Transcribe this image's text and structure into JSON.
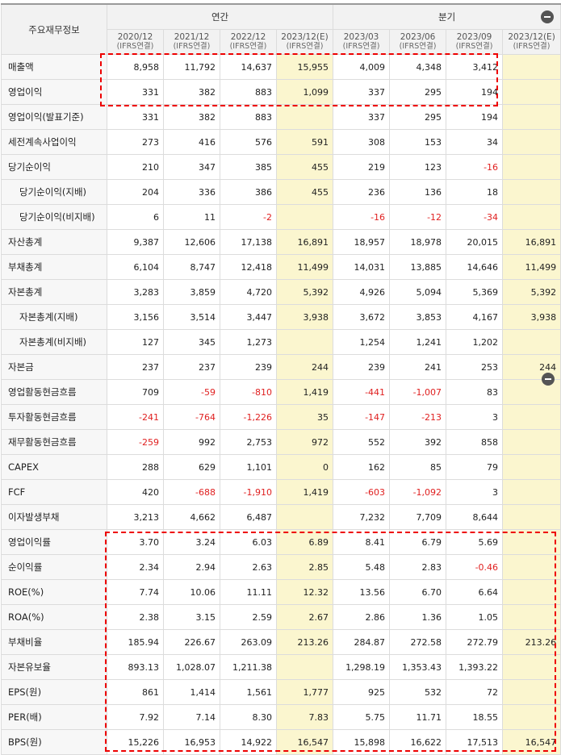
{
  "header": {
    "corner": "주요재무정보",
    "annual_label": "연간",
    "quarter_label": "분기",
    "columns": [
      {
        "period": "2020/12",
        "basis": "(IFRS연결)"
      },
      {
        "period": "2021/12",
        "basis": "(IFRS연결)"
      },
      {
        "period": "2022/12",
        "basis": "(IFRS연결)"
      },
      {
        "period": "2023/12(E)",
        "basis": "(IFRS연결)"
      },
      {
        "period": "2023/03",
        "basis": "(IFRS연결)"
      },
      {
        "period": "2023/06",
        "basis": "(IFRS연결)"
      },
      {
        "period": "2023/09",
        "basis": "(IFRS연결)"
      },
      {
        "period": "2023/12(E)",
        "basis": "(IFRS연결)"
      }
    ]
  },
  "rows": [
    {
      "label": "매출액",
      "values": [
        "8,958",
        "11,792",
        "14,637",
        "15,955",
        "4,009",
        "4,348",
        "3,412",
        ""
      ]
    },
    {
      "label": "영업이익",
      "values": [
        "331",
        "382",
        "883",
        "1,099",
        "337",
        "295",
        "194",
        ""
      ]
    },
    {
      "label": "영업이익(발표기준)",
      "values": [
        "331",
        "382",
        "883",
        "",
        "337",
        "295",
        "194",
        ""
      ]
    },
    {
      "label": "세전계속사업이익",
      "values": [
        "273",
        "416",
        "576",
        "591",
        "308",
        "153",
        "34",
        ""
      ]
    },
    {
      "label": "당기순이익",
      "values": [
        "210",
        "347",
        "385",
        "455",
        "219",
        "123",
        "-16",
        ""
      ]
    },
    {
      "label": "당기순이익(지배)",
      "values": [
        "204",
        "336",
        "386",
        "455",
        "236",
        "136",
        "18",
        ""
      ]
    },
    {
      "label": "당기순이익(비지배)",
      "values": [
        "6",
        "11",
        "-2",
        "",
        "-16",
        "-12",
        "-34",
        ""
      ]
    },
    {
      "label": "자산총계",
      "values": [
        "9,387",
        "12,606",
        "17,138",
        "16,891",
        "18,957",
        "18,978",
        "20,015",
        "16,891"
      ]
    },
    {
      "label": "부채총계",
      "values": [
        "6,104",
        "8,747",
        "12,418",
        "11,499",
        "14,031",
        "13,885",
        "14,646",
        "11,499"
      ]
    },
    {
      "label": "자본총계",
      "values": [
        "3,283",
        "3,859",
        "4,720",
        "5,392",
        "4,926",
        "5,094",
        "5,369",
        "5,392"
      ]
    },
    {
      "label": "자본총계(지배)",
      "values": [
        "3,156",
        "3,514",
        "3,447",
        "3,938",
        "3,672",
        "3,853",
        "4,167",
        "3,938"
      ]
    },
    {
      "label": "자본총계(비지배)",
      "values": [
        "127",
        "345",
        "1,273",
        "",
        "1,254",
        "1,241",
        "1,202",
        ""
      ]
    },
    {
      "label": "자본금",
      "values": [
        "237",
        "237",
        "239",
        "244",
        "239",
        "241",
        "253",
        "244"
      ]
    },
    {
      "label": "영업활동현금흐름",
      "values": [
        "709",
        "-59",
        "-810",
        "1,419",
        "-441",
        "-1,007",
        "83",
        ""
      ]
    },
    {
      "label": "투자활동현금흐름",
      "values": [
        "-241",
        "-764",
        "-1,226",
        "35",
        "-147",
        "-213",
        "3",
        ""
      ]
    },
    {
      "label": "재무활동현금흐름",
      "values": [
        "-259",
        "992",
        "2,753",
        "972",
        "552",
        "392",
        "858",
        ""
      ]
    },
    {
      "label": "CAPEX",
      "values": [
        "288",
        "629",
        "1,101",
        "0",
        "162",
        "85",
        "79",
        ""
      ]
    },
    {
      "label": "FCF",
      "values": [
        "420",
        "-688",
        "-1,910",
        "1,419",
        "-603",
        "-1,092",
        "3",
        ""
      ]
    },
    {
      "label": "이자발생부채",
      "values": [
        "3,213",
        "4,662",
        "6,487",
        "",
        "7,232",
        "7,709",
        "8,644",
        ""
      ]
    },
    {
      "label": "영업이익률",
      "values": [
        "3.70",
        "3.24",
        "6.03",
        "6.89",
        "8.41",
        "6.79",
        "5.69",
        ""
      ]
    },
    {
      "label": "순이익률",
      "values": [
        "2.34",
        "2.94",
        "2.63",
        "2.85",
        "5.48",
        "2.83",
        "-0.46",
        ""
      ]
    },
    {
      "label": "ROE(%)",
      "values": [
        "7.74",
        "10.06",
        "11.11",
        "12.32",
        "13.56",
        "6.70",
        "6.64",
        ""
      ]
    },
    {
      "label": "ROA(%)",
      "values": [
        "2.38",
        "3.15",
        "2.59",
        "2.67",
        "2.86",
        "1.36",
        "1.05",
        ""
      ]
    },
    {
      "label": "부채비율",
      "values": [
        "185.94",
        "226.67",
        "263.09",
        "213.26",
        "284.87",
        "272.58",
        "272.79",
        "213.26"
      ]
    },
    {
      "label": "자본유보율",
      "values": [
        "893.13",
        "1,028.07",
        "1,211.38",
        "",
        "1,298.19",
        "1,353.43",
        "1,393.22",
        ""
      ]
    },
    {
      "label": "EPS(원)",
      "values": [
        "861",
        "1,414",
        "1,561",
        "1,777",
        "925",
        "532",
        "72",
        ""
      ]
    },
    {
      "label": "PER(배)",
      "values": [
        "7.92",
        "7.14",
        "8.30",
        "7.83",
        "5.75",
        "11.71",
        "18.55",
        ""
      ]
    },
    {
      "label": "BPS(원)",
      "values": [
        "15,226",
        "16,953",
        "14,922",
        "16,547",
        "15,898",
        "16,622",
        "17,513",
        "16,547"
      ]
    }
  ],
  "colors": {
    "negative": "#e02020",
    "estimate_bg": "#fbf6cf",
    "highlight": "#e00000"
  }
}
